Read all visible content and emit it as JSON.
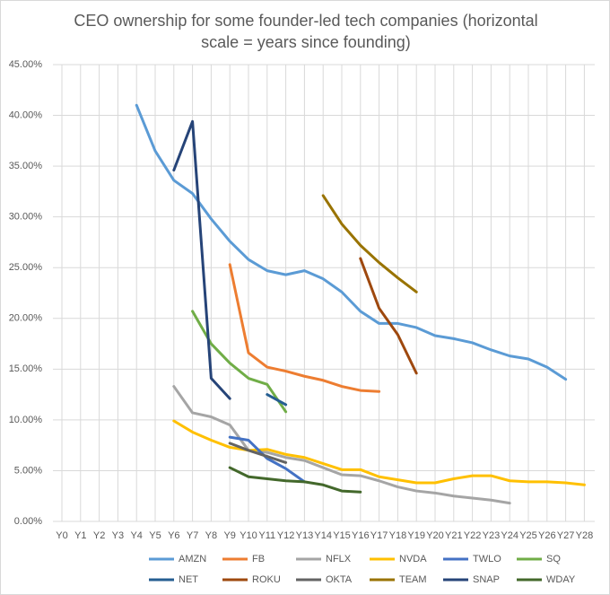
{
  "chart_data": {
    "type": "line",
    "title": "CEO ownership for some founder-led tech companies (horizontal scale = years since founding)",
    "categories": [
      "Y0",
      "Y1",
      "Y2",
      "Y3",
      "Y4",
      "Y5",
      "Y6",
      "Y7",
      "Y8",
      "Y9",
      "Y10",
      "Y11",
      "Y12",
      "Y13",
      "Y14",
      "Y15",
      "Y16",
      "Y17",
      "Y18",
      "Y19",
      "Y20",
      "Y21",
      "Y22",
      "Y23",
      "Y24",
      "Y25",
      "Y26",
      "Y27",
      "Y28"
    ],
    "ylim": [
      0,
      45
    ],
    "yticks": [
      {
        "value": 0,
        "label": "0.00%"
      },
      {
        "value": 5,
        "label": "5.00%"
      },
      {
        "value": 10,
        "label": "10.00%"
      },
      {
        "value": 15,
        "label": "15.00%"
      },
      {
        "value": 20,
        "label": "20.00%"
      },
      {
        "value": 25,
        "label": "25.00%"
      },
      {
        "value": 30,
        "label": "30.00%"
      },
      {
        "value": 35,
        "label": "35.00%"
      },
      {
        "value": 40,
        "label": "40.00%"
      },
      {
        "value": 45,
        "label": "45.00%"
      }
    ],
    "grid": true,
    "legend": "bottom",
    "series": [
      {
        "name": "AMZN",
        "color": "#5b9bd5",
        "values": [
          null,
          null,
          null,
          null,
          41.0,
          36.5,
          33.6,
          32.3,
          29.8,
          27.6,
          25.8,
          24.7,
          24.3,
          24.7,
          23.9,
          22.6,
          20.7,
          19.5,
          19.5,
          19.1,
          18.3,
          18.0,
          17.6,
          16.9,
          16.3,
          16.0,
          15.2,
          14.0,
          null
        ]
      },
      {
        "name": "FB",
        "color": "#ed7d31",
        "values": [
          null,
          null,
          null,
          null,
          null,
          null,
          null,
          null,
          null,
          25.3,
          16.6,
          15.2,
          14.8,
          14.3,
          13.9,
          13.3,
          12.9,
          12.8,
          null,
          null,
          null,
          null,
          null,
          null,
          null,
          null,
          null,
          null,
          null
        ]
      },
      {
        "name": "NFLX",
        "color": "#a5a5a5",
        "values": [
          null,
          null,
          null,
          null,
          null,
          null,
          13.3,
          10.7,
          10.3,
          9.5,
          7.0,
          6.8,
          6.3,
          6.0,
          5.3,
          4.6,
          4.5,
          4.0,
          3.4,
          3.0,
          2.8,
          2.5,
          2.3,
          2.1,
          1.8,
          null,
          null,
          null,
          null
        ]
      },
      {
        "name": "NVDA",
        "color": "#ffc000",
        "values": [
          null,
          null,
          null,
          null,
          null,
          null,
          9.9,
          8.8,
          8.0,
          7.3,
          7.0,
          7.1,
          6.6,
          6.3,
          5.7,
          5.1,
          5.1,
          4.4,
          4.1,
          3.8,
          3.8,
          4.2,
          4.5,
          4.5,
          4.0,
          3.9,
          3.9,
          3.8,
          3.6
        ]
      },
      {
        "name": "TWLO",
        "color": "#4472c4",
        "values": [
          null,
          null,
          null,
          null,
          null,
          null,
          null,
          null,
          null,
          8.3,
          8.0,
          6.2,
          5.2,
          3.9,
          null,
          null,
          null,
          null,
          null,
          null,
          null,
          null,
          null,
          null,
          null,
          null,
          null,
          null,
          null
        ]
      },
      {
        "name": "SQ",
        "color": "#70ad47",
        "values": [
          null,
          null,
          null,
          null,
          null,
          null,
          null,
          20.7,
          17.5,
          15.6,
          14.1,
          13.5,
          10.8,
          null,
          null,
          null,
          null,
          null,
          null,
          null,
          null,
          null,
          null,
          null,
          null,
          null,
          null,
          null,
          null
        ]
      },
      {
        "name": "NET",
        "color": "#255e91",
        "values": [
          null,
          null,
          null,
          null,
          null,
          null,
          null,
          null,
          null,
          null,
          null,
          12.5,
          11.5,
          null,
          null,
          null,
          null,
          null,
          null,
          null,
          null,
          null,
          null,
          null,
          null,
          null,
          null,
          null,
          null
        ]
      },
      {
        "name": "ROKU",
        "color": "#9e480e",
        "values": [
          null,
          null,
          null,
          null,
          null,
          null,
          null,
          null,
          null,
          null,
          null,
          null,
          null,
          null,
          null,
          null,
          25.9,
          21.0,
          18.4,
          14.6,
          null,
          null,
          null,
          null,
          null,
          null,
          null,
          null,
          null
        ]
      },
      {
        "name": "OKTA",
        "color": "#636363",
        "values": [
          null,
          null,
          null,
          null,
          null,
          null,
          null,
          null,
          null,
          7.7,
          7.0,
          6.4,
          5.8,
          null,
          null,
          null,
          null,
          null,
          null,
          null,
          null,
          null,
          null,
          null,
          null,
          null,
          null,
          null,
          null
        ]
      },
      {
        "name": "TEAM",
        "color": "#997300",
        "values": [
          null,
          null,
          null,
          null,
          null,
          null,
          null,
          null,
          null,
          null,
          null,
          null,
          null,
          null,
          32.1,
          29.3,
          27.2,
          25.5,
          24.0,
          22.6,
          null,
          null,
          null,
          null,
          null,
          null,
          null,
          null,
          null
        ]
      },
      {
        "name": "SNAP",
        "color": "#264478",
        "values": [
          null,
          null,
          null,
          null,
          null,
          null,
          34.6,
          39.4,
          14.1,
          12.1,
          null,
          null,
          null,
          null,
          null,
          null,
          null,
          null,
          null,
          null,
          null,
          null,
          null,
          null,
          null,
          null,
          null,
          null,
          null
        ]
      },
      {
        "name": "WDAY",
        "color": "#43682b",
        "values": [
          null,
          null,
          null,
          null,
          null,
          null,
          null,
          null,
          null,
          5.3,
          4.4,
          4.2,
          4.0,
          3.9,
          3.6,
          3.0,
          2.9,
          null,
          null,
          null,
          null,
          null,
          null,
          null,
          null,
          null,
          null,
          null,
          null
        ]
      }
    ]
  }
}
